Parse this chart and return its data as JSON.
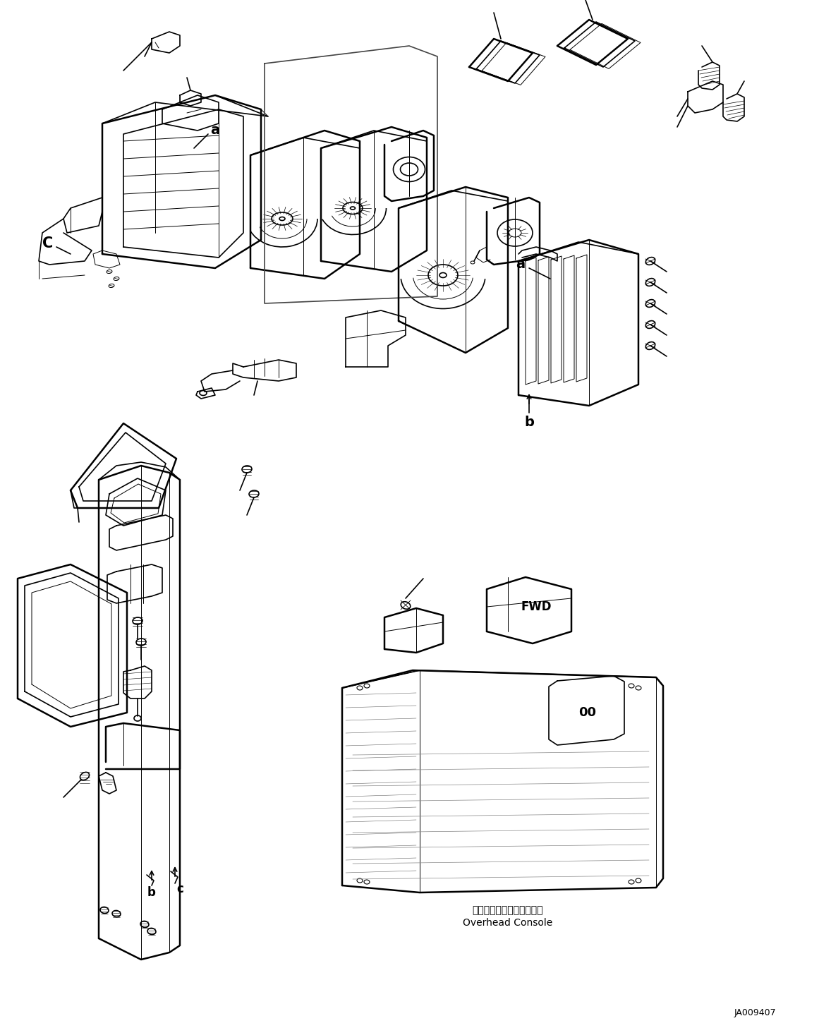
{
  "background_color": "#ffffff",
  "line_color": "#000000",
  "figure_id": "JA009407",
  "lw_heavy": 1.8,
  "lw_med": 1.2,
  "lw_light": 0.7,
  "labels": {
    "overhead_console_jp": "オーバーヘッドコンソール",
    "overhead_console_en": "Overhead Console"
  }
}
